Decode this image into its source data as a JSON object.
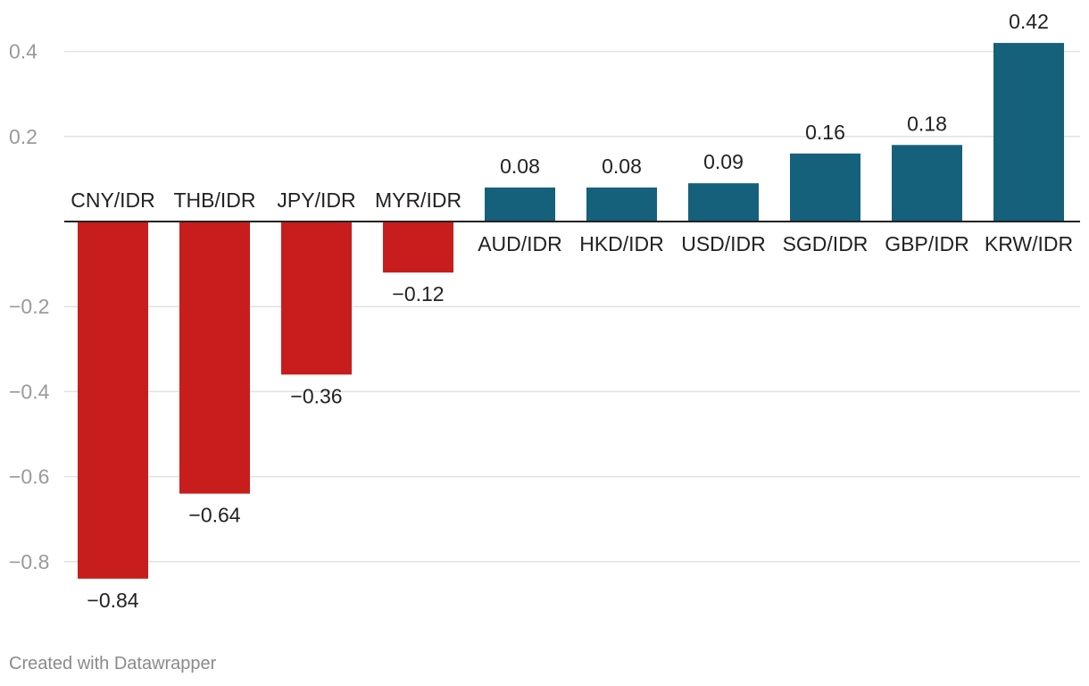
{
  "chart_data": {
    "type": "bar",
    "categories": [
      "CNY/IDR",
      "THB/IDR",
      "JPY/IDR",
      "MYR/IDR",
      "AUD/IDR",
      "HKD/IDR",
      "USD/IDR",
      "SGD/IDR",
      "GBP/IDR",
      "KRW/IDR"
    ],
    "values": [
      -0.84,
      -0.64,
      -0.36,
      -0.12,
      0.08,
      0.08,
      0.09,
      0.16,
      0.18,
      0.42
    ],
    "value_labels": [
      "−0.84",
      "−0.64",
      "−0.36",
      "−0.12",
      "0.08",
      "0.08",
      "0.09",
      "0.16",
      "0.18",
      "0.42"
    ],
    "y_ticks": [
      0.4,
      0.2,
      -0.2,
      -0.4,
      -0.6,
      -0.8
    ],
    "y_tick_labels": [
      "0.4",
      "0.2",
      "−0.2",
      "−0.4",
      "−0.6",
      "−0.8"
    ],
    "ylim": [
      -0.84,
      0.42
    ],
    "grid": true,
    "colors": {
      "negative": "#c71e1d",
      "positive": "#15607a",
      "grid": "#e2e2e2",
      "axis": "#222222"
    }
  },
  "footer": {
    "credit": "Created with Datawrapper"
  }
}
